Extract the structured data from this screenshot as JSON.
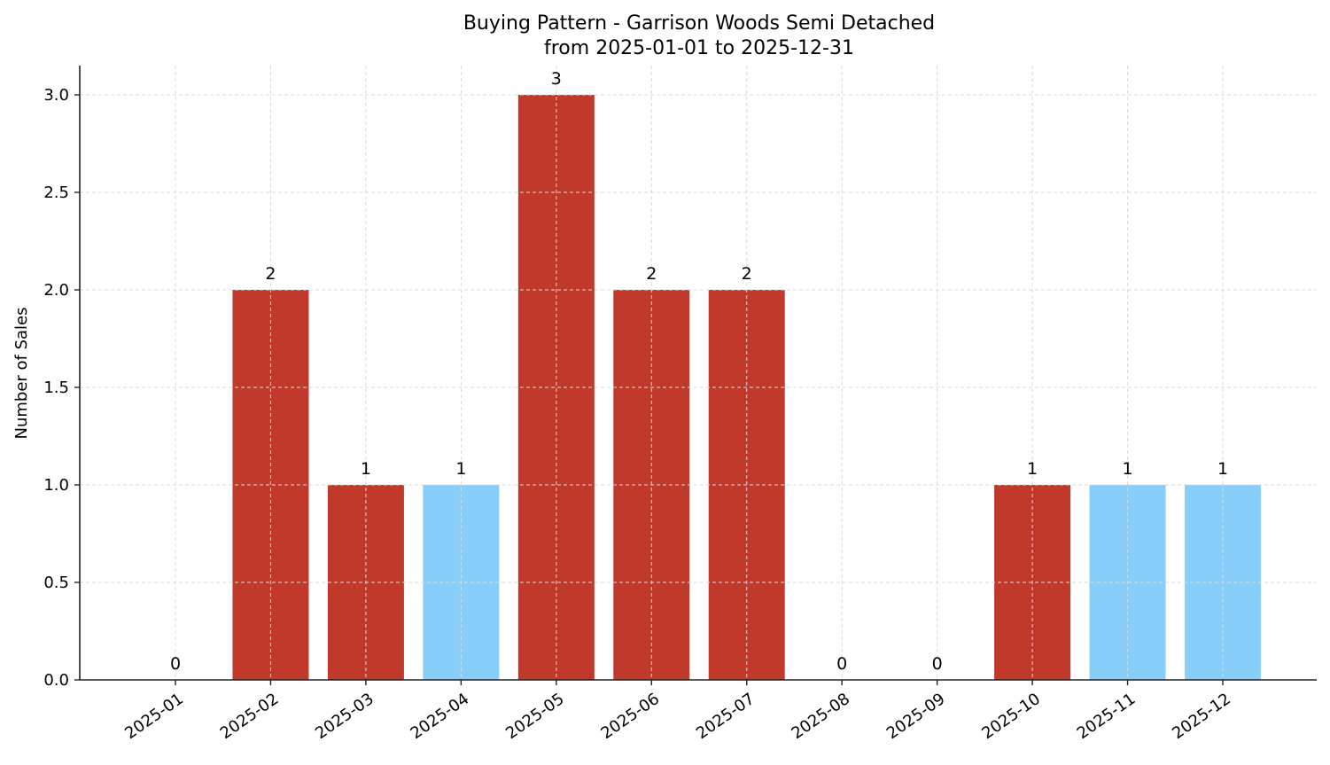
{
  "chart_data": {
    "type": "bar",
    "title": "Buying Pattern - Garrison Woods Semi Detached",
    "subtitle": "from 2025-01-01 to 2025-12-31",
    "xlabel": "",
    "ylabel": "Number of Sales",
    "categories": [
      "2025-01",
      "2025-02",
      "2025-03",
      "2025-04",
      "2025-05",
      "2025-06",
      "2025-07",
      "2025-08",
      "2025-09",
      "2025-10",
      "2025-11",
      "2025-12"
    ],
    "values": [
      0,
      2,
      1,
      1,
      3,
      2,
      2,
      0,
      0,
      1,
      1,
      1
    ],
    "bar_colors": [
      "#c0392b",
      "#c0392b",
      "#c0392b",
      "#87cefa",
      "#c0392b",
      "#c0392b",
      "#c0392b",
      "#c0392b",
      "#c0392b",
      "#c0392b",
      "#87cefa",
      "#87cefa"
    ],
    "ylim": [
      0,
      3.15
    ],
    "yticks": [
      "0.0",
      "0.5",
      "1.0",
      "1.5",
      "2.0",
      "2.5",
      "3.0"
    ],
    "ytick_values": [
      0,
      0.5,
      1.0,
      1.5,
      2.0,
      2.5,
      3.0
    ],
    "grid": true,
    "grid_style": "dashed",
    "legend": null,
    "data_labels": true,
    "colors": {
      "primary": "#c0392b",
      "highlight": "#87cefa",
      "grid": "#d9d9d9",
      "axis": "#222222"
    }
  }
}
